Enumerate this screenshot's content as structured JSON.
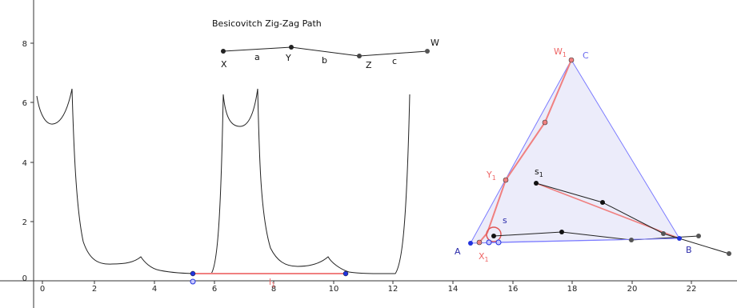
{
  "canvas_title": "Besicovitch Zig-Zag Path",
  "axes": {
    "x_ticks": [
      "0",
      "2",
      "4",
      "6",
      "8",
      "10",
      "12",
      "14",
      "16",
      "18",
      "20",
      "22"
    ],
    "y_ticks": [
      "0",
      "2",
      "4",
      "6",
      "8"
    ]
  },
  "path_labels": {
    "X": "X",
    "Y": "Y",
    "Z": "Z",
    "W": "W",
    "a": "a",
    "b": "b",
    "c": "c"
  },
  "triangle_labels": {
    "A": "A",
    "B": "B",
    "C": "C",
    "W1": "W",
    "W1_sub": "1",
    "Y1": "Y",
    "Y1_sub": "1",
    "X1": "X",
    "X1_sub": "1",
    "s1": "s",
    "s1_sub": "1",
    "s": "s"
  },
  "segment_label": {
    "text": "l",
    "sub": "1"
  },
  "colors": {
    "curve": "#222222",
    "axis": "#333333",
    "red": "#f08080",
    "red_dark": "#e05555",
    "triangle_stroke": "#7b7bff",
    "triangle_fill": "#ececfa",
    "blue_point": "#2233dd",
    "label_red": "#ee6666",
    "label_blue": "#2a2aaa"
  }
}
